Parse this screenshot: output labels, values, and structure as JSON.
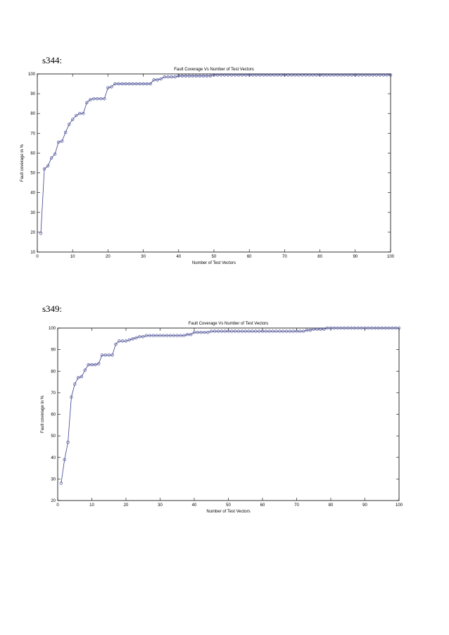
{
  "page": {
    "background": "#ffffff"
  },
  "charts": [
    {
      "section_label": "s344:",
      "chart_data": {
        "type": "line",
        "title": "Fault Coverage Vs Number of Test Vectors",
        "xlabel": "Number of Test Vectors",
        "ylabel": "Fault coverage in %",
        "xlim": [
          0,
          100
        ],
        "ylim": [
          10,
          100
        ],
        "xticks": [
          0,
          10,
          20,
          30,
          40,
          50,
          60,
          70,
          80,
          90,
          100
        ],
        "yticks": [
          10,
          20,
          30,
          40,
          50,
          60,
          70,
          80,
          90,
          100
        ],
        "grid": false,
        "marker": "circle",
        "color": "#3a3f8c",
        "series": [
          {
            "x": [
              1,
              2,
              3,
              4,
              5,
              6,
              7,
              8,
              9,
              10,
              11,
              12,
              13,
              14,
              15,
              16,
              17,
              18,
              19,
              20,
              21,
              22,
              23,
              24,
              25,
              26,
              27,
              28,
              29,
              30,
              31,
              32,
              33,
              34,
              35,
              36,
              37,
              38,
              39,
              40,
              41,
              42,
              43,
              44,
              45,
              46,
              47,
              48,
              49,
              50,
              51,
              52,
              53,
              54,
              55,
              56,
              57,
              58,
              59,
              60,
              61,
              62,
              63,
              64,
              65,
              66,
              67,
              68,
              69,
              70,
              71,
              72,
              73,
              74,
              75,
              76,
              77,
              78,
              79,
              80,
              81,
              82,
              83,
              84,
              85,
              86,
              87,
              88,
              89,
              90,
              91,
              92,
              93,
              94,
              95,
              96,
              97,
              98,
              99,
              100
            ],
            "values": [
              19.5,
              52,
              53.5,
              57.5,
              59.5,
              65.5,
              66,
              70.5,
              74.5,
              77,
              79,
              80,
              80,
              85.5,
              87,
              87.5,
              87.5,
              87.5,
              87.5,
              93,
              93.5,
              95,
              95,
              95,
              95,
              95,
              95,
              95,
              95,
              95,
              95,
              95,
              97,
              97,
              97.5,
              98.5,
              98.5,
              98.5,
              98.5,
              99,
              99,
              99,
              99,
              99,
              99,
              99,
              99,
              99,
              99,
              99.5,
              99.5,
              99.5,
              99.5,
              99.5,
              99.5,
              99.5,
              99.5,
              99.5,
              99.5,
              99.5,
              99.5,
              99.5,
              99.5,
              99.5,
              99.5,
              99.5,
              99.5,
              99.5,
              99.5,
              99.5,
              99.5,
              99.5,
              99.5,
              99.5,
              99.5,
              99.5,
              99.5,
              99.5,
              99.5,
              99.5,
              99.5,
              99.5,
              99.5,
              99.5,
              99.5,
              99.5,
              99.5,
              99.5,
              99.5,
              99.5,
              99.5,
              99.5,
              99.5,
              99.5,
              99.5,
              99.5,
              99.5,
              99.5,
              99.5,
              99.5
            ]
          }
        ]
      }
    },
    {
      "section_label": "s349:",
      "chart_data": {
        "type": "line",
        "title": "Fault Coverage Vs Number of Test Vectors",
        "xlabel": "Number of Test Vectors",
        "ylabel": "Fault coverage in %",
        "xlim": [
          0,
          100
        ],
        "ylim": [
          20,
          100
        ],
        "xticks": [
          0,
          10,
          20,
          30,
          40,
          50,
          60,
          70,
          80,
          90,
          100
        ],
        "yticks": [
          20,
          30,
          40,
          50,
          60,
          70,
          80,
          90,
          100
        ],
        "grid": false,
        "marker": "circle",
        "color": "#3a3f8c",
        "series": [
          {
            "x": [
              1,
              2,
              3,
              4,
              5,
              6,
              7,
              8,
              9,
              10,
              11,
              12,
              13,
              14,
              15,
              16,
              17,
              18,
              19,
              20,
              21,
              22,
              23,
              24,
              25,
              26,
              27,
              28,
              29,
              30,
              31,
              32,
              33,
              34,
              35,
              36,
              37,
              38,
              39,
              40,
              41,
              42,
              43,
              44,
              45,
              46,
              47,
              48,
              49,
              50,
              51,
              52,
              53,
              54,
              55,
              56,
              57,
              58,
              59,
              60,
              61,
              62,
              63,
              64,
              65,
              66,
              67,
              68,
              69,
              70,
              71,
              72,
              73,
              74,
              75,
              76,
              77,
              78,
              79,
              80,
              81,
              82,
              83,
              84,
              85,
              86,
              87,
              88,
              89,
              90,
              91,
              92,
              93,
              94,
              95,
              96,
              97,
              98,
              99,
              100
            ],
            "values": [
              28,
              39,
              47,
              68,
              74,
              77,
              77.5,
              80.5,
              83,
              83,
              83,
              83.5,
              87.5,
              87.5,
              87.5,
              87.5,
              92.5,
              94,
              94,
              94,
              94.5,
              95,
              95.5,
              96,
              96,
              96.5,
              96.5,
              96.5,
              96.5,
              96.5,
              96.5,
              96.5,
              96.5,
              96.5,
              96.5,
              96.5,
              96.5,
              97,
              97,
              98,
              98,
              98,
              98,
              98,
              98.5,
              98.5,
              98.5,
              98.5,
              98.5,
              98.5,
              98.5,
              98.5,
              98.5,
              98.5,
              98.5,
              98.5,
              98.5,
              98.5,
              98.5,
              98.5,
              98.5,
              98.5,
              98.5,
              98.5,
              98.5,
              98.5,
              98.5,
              98.5,
              98.5,
              98.5,
              98.5,
              98.5,
              99,
              99,
              99.5,
              99.5,
              99.5,
              99.5,
              100,
              100,
              100,
              100,
              100,
              100,
              100,
              100,
              100,
              100,
              100,
              100,
              100,
              100,
              100,
              100,
              100,
              100,
              100,
              100,
              100,
              100
            ]
          }
        ]
      }
    }
  ]
}
